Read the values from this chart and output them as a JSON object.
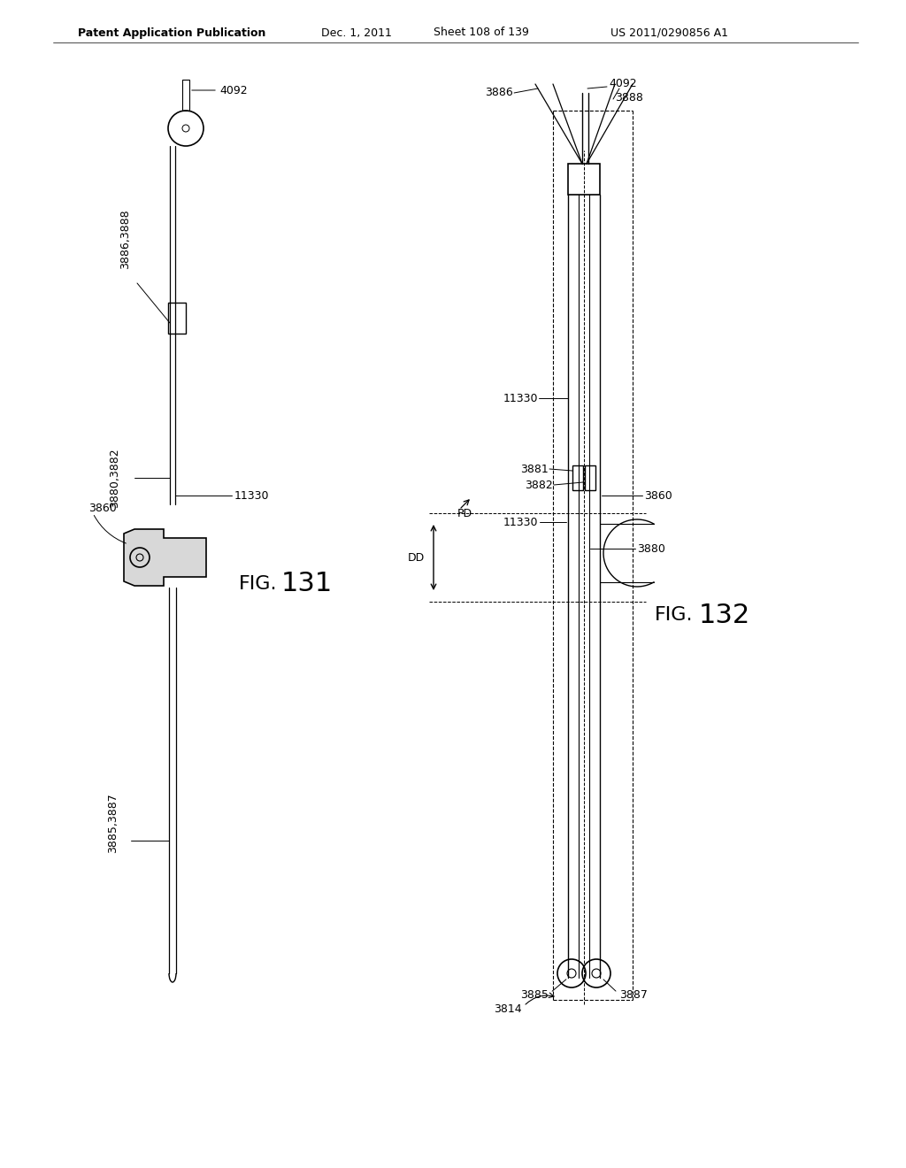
{
  "header_left": "Patent Application Publication",
  "header_mid": "Dec. 1, 2011",
  "header_sheet": "Sheet 108 of 139",
  "header_patent": "US 2011/0290856 A1",
  "fig131_label": "FIG. 131",
  "fig132_label": "FIG. 132",
  "bg_color": "#ffffff",
  "line_color": "#000000"
}
